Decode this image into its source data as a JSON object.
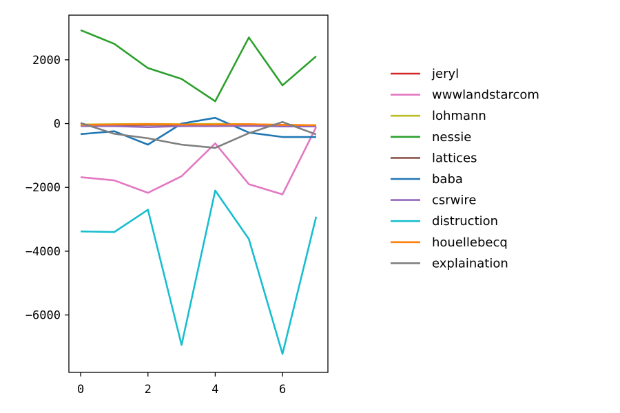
{
  "chart_data": {
    "type": "line",
    "title": "",
    "xlabel": "",
    "ylabel": "",
    "x": [
      0,
      1,
      2,
      3,
      4,
      5,
      6,
      7
    ],
    "xlim": [
      -0.35,
      7.35
    ],
    "ylim": [
      -7800,
      3400
    ],
    "xticks": [
      0,
      2,
      4,
      6
    ],
    "yticks": [
      2000,
      0,
      -2000,
      -4000,
      -6000
    ],
    "grid": false,
    "legend_position": "right",
    "series": [
      {
        "name": "jeryl",
        "color": "#d62728",
        "values": [
          -50,
          -50,
          -30,
          -30,
          -40,
          -40,
          -60,
          -60
        ]
      },
      {
        "name": "wwwlandstarcom",
        "color": "#e377c2",
        "values": [
          -1680,
          -1780,
          -2170,
          -1650,
          -620,
          -1900,
          -2220,
          -110
        ]
      },
      {
        "name": "lohmann",
        "color": "#bcbd22",
        "values": [
          -30,
          -20,
          -10,
          -20,
          -10,
          -20,
          -40,
          -50
        ]
      },
      {
        "name": "nessie",
        "color": "#2ca02c",
        "values": [
          2930,
          2500,
          1740,
          1400,
          700,
          2700,
          1200,
          2110
        ]
      },
      {
        "name": "lattices",
        "color": "#8c564b",
        "values": [
          -60,
          -50,
          -40,
          -40,
          -50,
          -60,
          -60,
          -70
        ]
      },
      {
        "name": "baba",
        "color": "#1f77b4",
        "values": [
          -330,
          -240,
          -660,
          0,
          180,
          -280,
          -420,
          -420
        ]
      },
      {
        "name": "csrwire",
        "color": "#9467bd",
        "values": [
          -80,
          -80,
          -110,
          -80,
          -80,
          -70,
          -90,
          -90
        ]
      },
      {
        "name": "distruction",
        "color": "#17becf",
        "values": [
          -3380,
          -3400,
          -2700,
          -6940,
          -2100,
          -3620,
          -7220,
          -2920
        ]
      },
      {
        "name": "houellebecq",
        "color": "#ff7f0e",
        "values": [
          -40,
          -30,
          -20,
          -30,
          -30,
          -20,
          -40,
          -50
        ]
      },
      {
        "name": "explaination",
        "color": "#7f7f7f",
        "values": [
          20,
          -320,
          -460,
          -660,
          -760,
          -300,
          50,
          -340
        ]
      }
    ]
  }
}
